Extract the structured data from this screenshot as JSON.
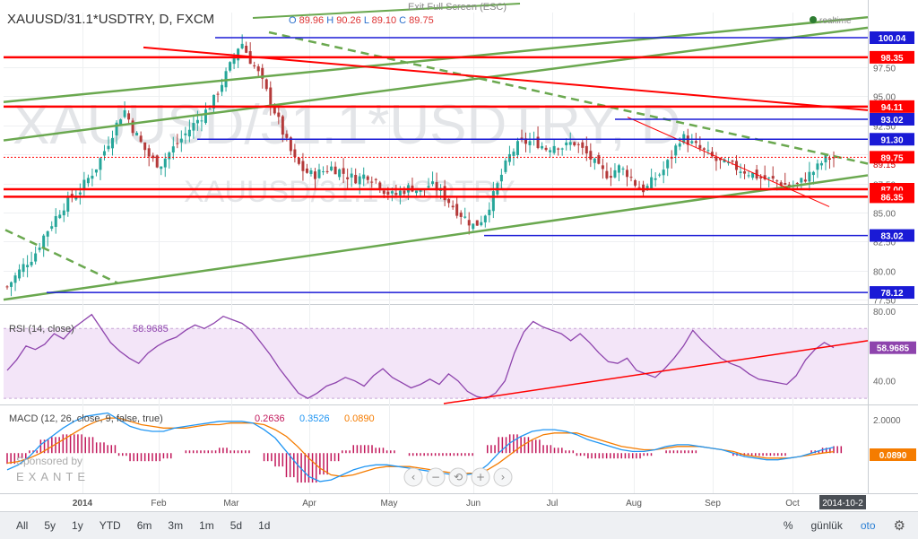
{
  "exit_fullscreen": "Exit Full Screen (ESC)",
  "symbol": "XAUUSD/31.1*USDTRY, D, FXCM",
  "ohlc": {
    "O": "89.96",
    "H": "90.26",
    "L": "89.10",
    "C": "89.75"
  },
  "realtime_label": "realtime",
  "watermark": {
    "main": "XAUUSD/31.1*USDTRY, D",
    "sub": "XAUUSD/31.1*USDTRY"
  },
  "sponsor": {
    "line1": "Sponsored by",
    "line2": "EXANTE"
  },
  "colors": {
    "up": "#26a69a",
    "down": "#b43a3a",
    "red_line": "#ff0000",
    "blue_line": "#1a1ad6",
    "green_line": "#6aa84f",
    "rsi": "#8e44ad",
    "macd": "#2196f3",
    "signal": "#f57c00",
    "hist": "#c2185b"
  },
  "chart_data": [
    {
      "type": "candlestick",
      "title": "XAUUSD/31.1*USDTRY, D, FXCM",
      "x_labels": [
        "2014",
        "Feb",
        "Mar",
        "Apr",
        "May",
        "Jun",
        "Jul",
        "Aug",
        "Sep",
        "Oct",
        "2014-10-2"
      ],
      "y_ticks": [
        77.5,
        80.0,
        82.5,
        85.0,
        87.5,
        90.0,
        92.5,
        95.0,
        97.5
      ],
      "ylim": [
        77.2,
        102.2
      ],
      "close_path": [
        78.6,
        79.6,
        80.6,
        81.3,
        82.9,
        84.1,
        85.3,
        86.2,
        86.8,
        87.9,
        89.0,
        90.6,
        92.3,
        93.9,
        92.2,
        90.8,
        89.6,
        89.1,
        90.1,
        91.0,
        91.9,
        92.8,
        93.6,
        94.7,
        96.3,
        97.9,
        99.8,
        98.2,
        96.9,
        95.1,
        93.3,
        91.2,
        89.5,
        88.6,
        88.2,
        88.5,
        88.9,
        88.6,
        88.1,
        87.9,
        88.3,
        87.8,
        86.9,
        86.4,
        86.9,
        87.2,
        86.8,
        87.4,
        87.0,
        86.1,
        85.2,
        84.5,
        83.8,
        84.6,
        86.2,
        88.2,
        90.0,
        90.9,
        91.1,
        91.0,
        90.5,
        90.9,
        90.6,
        91.1,
        90.4,
        89.6,
        88.6,
        88.2,
        88.9,
        88.4,
        87.4,
        86.9,
        87.9,
        88.6,
        89.9,
        91.6,
        91.0,
        90.5,
        90.0,
        89.4,
        89.1,
        88.9,
        88.6,
        88.3,
        87.9,
        87.8,
        87.6,
        87.2,
        87.4,
        88.1,
        88.7,
        89.6,
        89.75
      ],
      "horizontal_levels": [
        {
          "value": 100.04,
          "label": "100.04",
          "color": "blue"
        },
        {
          "value": 98.35,
          "label": "98.35",
          "color": "red"
        },
        {
          "value": 94.11,
          "label": "94.11",
          "color": "red"
        },
        {
          "value": 93.02,
          "label": "93.02",
          "color": "blue"
        },
        {
          "value": 91.3,
          "label": "91.30",
          "color": "blue"
        },
        {
          "value": 89.75,
          "label": "89.75",
          "color": "red"
        },
        {
          "value": 87.0,
          "label": "87.00",
          "color": "red"
        },
        {
          "value": 86.35,
          "label": "86.35",
          "color": "red"
        },
        {
          "value": 83.02,
          "label": "83.02",
          "color": "blue"
        },
        {
          "value": 78.12,
          "label": "78.12",
          "color": "blue"
        }
      ],
      "current_price_label": "89.75",
      "hidden_label": "89.15"
    },
    {
      "type": "line",
      "title": "RSI (14, close)",
      "value_label": "58.9685",
      "y_ticks": [
        40.0,
        60.0,
        80.0
      ],
      "ylim": [
        27,
        83
      ],
      "series": [
        {
          "values": [
            46,
            52,
            60,
            58,
            61,
            67,
            64,
            70,
            74,
            78,
            70,
            62,
            57,
            53,
            50,
            56,
            60,
            63,
            65,
            69,
            72,
            70,
            73,
            77,
            75,
            73,
            69,
            62,
            55,
            47,
            40,
            33,
            30,
            33,
            37,
            39,
            42,
            40,
            37,
            43,
            47,
            42,
            39,
            36,
            38,
            41,
            38,
            44,
            40,
            34,
            31,
            30,
            33,
            40,
            56,
            68,
            74,
            71,
            69,
            67,
            63,
            67,
            62,
            56,
            51,
            50,
            53,
            46,
            44,
            42,
            47,
            53,
            60,
            69,
            63,
            58,
            53,
            50,
            48,
            44,
            41,
            40,
            39,
            38,
            43,
            52,
            58,
            62,
            59.0
          ]
        }
      ],
      "trendline": true
    },
    {
      "type": "line",
      "title": "MACD (12, 26, close, 9, false, true)",
      "values": {
        "histogram": "0.2636",
        "macd": "0.3526",
        "signal": "0.0890"
      },
      "y_ticks": [
        2.0
      ],
      "ylim": [
        -2.4,
        2.8
      ],
      "series": [
        {
          "values": [
            -1.0,
            -0.7,
            -0.2,
            0.5,
            1.0,
            1.5,
            1.9,
            2.2,
            2.3,
            2.4,
            2.0,
            1.6,
            1.4,
            1.3,
            1.3,
            1.5,
            1.6,
            1.7,
            1.8,
            1.9,
            1.9,
            1.9,
            1.8,
            1.4,
            0.9,
            0.1,
            -0.7,
            -1.4,
            -1.7,
            -1.6,
            -1.3,
            -1.0,
            -0.8,
            -0.7,
            -0.7,
            -0.8,
            -0.9,
            -1.0,
            -1.1,
            -1.2,
            -1.3,
            -1.3,
            -1.2,
            -0.7,
            0.0,
            0.6,
            1.0,
            1.3,
            1.4,
            1.4,
            1.3,
            1.1,
            0.8,
            0.6,
            0.4,
            0.2,
            0.1,
            0.1,
            0.2,
            0.4,
            0.5,
            0.5,
            0.4,
            0.3,
            0.2,
            0.0,
            -0.2,
            -0.3,
            -0.4,
            -0.4,
            -0.3,
            -0.2,
            0.0,
            0.2,
            0.35
          ]
        },
        {
          "values": [
            -0.6,
            -0.5,
            -0.3,
            0.0,
            0.4,
            0.8,
            1.2,
            1.6,
            1.9,
            2.1,
            2.1,
            1.9,
            1.7,
            1.6,
            1.5,
            1.5,
            1.5,
            1.6,
            1.7,
            1.7,
            1.8,
            1.8,
            1.8,
            1.7,
            1.4,
            1.0,
            0.4,
            -0.3,
            -0.9,
            -1.3,
            -1.4,
            -1.3,
            -1.1,
            -0.9,
            -0.8,
            -0.8,
            -0.8,
            -0.9,
            -1.0,
            -1.1,
            -1.2,
            -1.2,
            -1.2,
            -1.0,
            -0.6,
            -0.1,
            0.4,
            0.8,
            1.1,
            1.2,
            1.2,
            1.2,
            1.0,
            0.8,
            0.6,
            0.4,
            0.3,
            0.2,
            0.2,
            0.3,
            0.4,
            0.4,
            0.4,
            0.3,
            0.2,
            0.1,
            -0.1,
            -0.2,
            -0.3,
            -0.3,
            -0.3,
            -0.2,
            -0.1,
            0.0,
            0.09
          ]
        }
      ]
    }
  ],
  "toolbar": {
    "left": [
      "All",
      "5y",
      "1y",
      "YTD",
      "6m",
      "3m",
      "1m",
      "5d",
      "1d"
    ],
    "right": {
      "pct": "%",
      "period": "günlük",
      "auto": "oto"
    }
  }
}
